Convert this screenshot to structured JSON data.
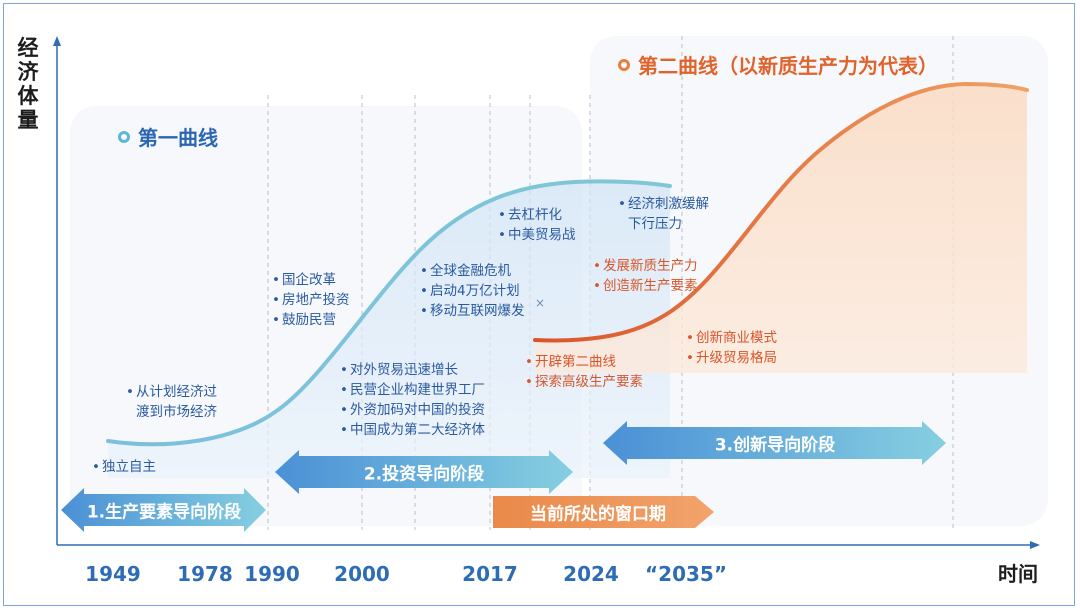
{
  "axes": {
    "y_label": "经济体量",
    "x_label": "时间",
    "years": [
      "1949",
      "1978",
      "1990",
      "2000",
      "2017",
      "2024",
      "“2035”"
    ]
  },
  "curves": {
    "first": {
      "title": "第一曲线",
      "color": "#5bb7d8"
    },
    "second": {
      "title": "第二曲线（以新质生产力为代表）",
      "color": "#e8803c"
    }
  },
  "stages": {
    "stage1": "1.生产要素导向阶段",
    "stage2": "2.投资导向阶段",
    "stage3": "3.创新导向阶段",
    "window": "当前所处的窗口期"
  },
  "notes": {
    "n1949": [
      "独立自主"
    ],
    "n1978": [
      "从计划经济过",
      "渡到市场经济"
    ],
    "n1990": [
      "国企改革",
      "房地产投资",
      "鼓励民营"
    ],
    "n2000": [
      "对外贸易迅速增长",
      "民营企业构建世界工厂",
      "外资加码对中国的投资",
      "中国成为第二大经济体"
    ],
    "n2008": [
      "全球金融危机",
      "启动4万亿计划",
      "移动互联网爆发"
    ],
    "n2017": [
      "去杠杆化",
      "中美贸易战"
    ],
    "n_stim": [
      "经济刺激缓解",
      "下行压力"
    ],
    "n_new": [
      "发展新质生产力",
      "创造新生产要素"
    ],
    "n_open": [
      "开辟第二曲线",
      "探索高级生产要素"
    ],
    "n_innov": [
      "创新商业模式",
      "升级贸易格局"
    ]
  },
  "marker": "×",
  "colors": {
    "axis_blue": "#2e6db4",
    "first_curve": "#5bb7d8",
    "second_curve": "#e8803c",
    "note_blue": "#2a5aa0",
    "note_orange": "#d9552a",
    "frame": "#7fa3de"
  }
}
